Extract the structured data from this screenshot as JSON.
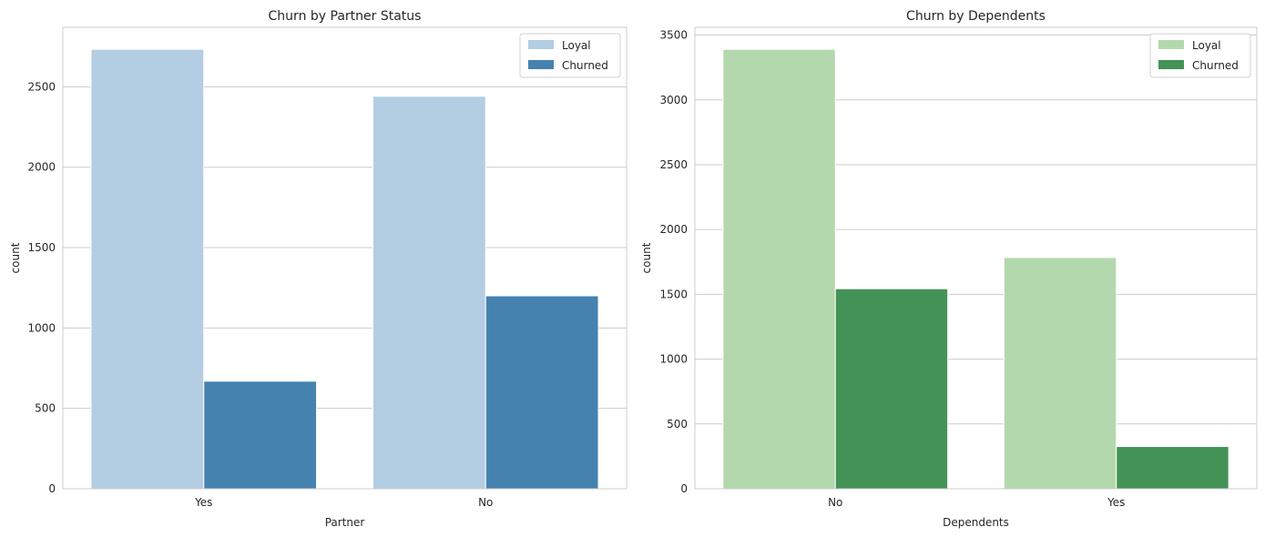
{
  "chart_data": [
    {
      "type": "bar",
      "title": "Churn by Partner Status",
      "xlabel": "Partner",
      "ylabel": "count",
      "categories": [
        "Yes",
        "No"
      ],
      "series": [
        {
          "name": "Loyal",
          "values": [
            2733,
            2441
          ],
          "color": "#b3cde3"
        },
        {
          "name": "Churned",
          "values": [
            669,
            1200
          ],
          "color": "#4682b0"
        }
      ],
      "ylim": [
        0,
        2870
      ],
      "yticks": [
        "0",
        "500",
        "1000",
        "1500",
        "2000",
        "2500"
      ],
      "grid": "y",
      "legend": "top-right"
    },
    {
      "type": "bar",
      "title": "Churn by Dependents",
      "xlabel": "Dependents",
      "ylabel": "count",
      "categories": [
        "No",
        "Yes"
      ],
      "series": [
        {
          "name": "Loyal",
          "values": [
            3390,
            1784
          ],
          "color": "#b3d8ad"
        },
        {
          "name": "Churned",
          "values": [
            1543,
            326
          ],
          "color": "#439357"
        }
      ],
      "ylim": [
        0,
        3560
      ],
      "yticks": [
        "0",
        "500",
        "1000",
        "1500",
        "2000",
        "2500",
        "3000",
        "3500"
      ],
      "grid": "y",
      "legend": "top-right"
    }
  ]
}
